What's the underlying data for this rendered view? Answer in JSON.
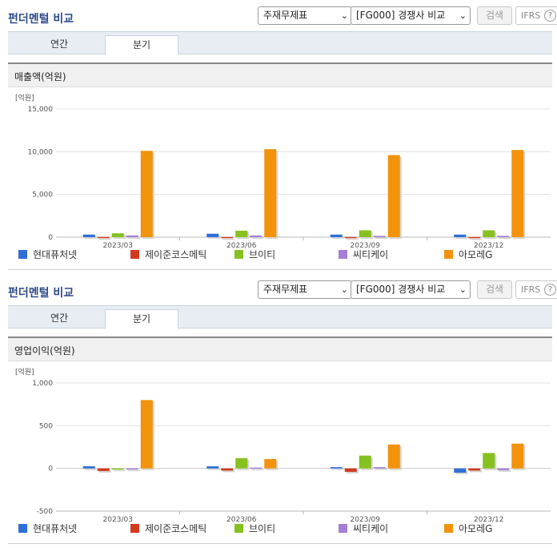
{
  "panels": [
    {
      "title": "펀더멘털 비교",
      "statement_select": "주재무제표",
      "compare_select": "[FG000] 경쟁사 비교",
      "search_button": "검색",
      "ifrs_button": "IFRS",
      "help_icon": "?",
      "tabs": [
        "연간",
        "분기"
      ],
      "active_tab": "분기",
      "metric_title": "매출액(억원)"
    },
    {
      "title": "펀더멘털 비교",
      "statement_select": "주재무제표",
      "compare_select": "[FG000] 경쟁사 비교",
      "search_button": "검색",
      "ifrs_button": "IFRS",
      "help_icon": "?",
      "tabs": [
        "연간",
        "분기"
      ],
      "active_tab": "분기",
      "metric_title": "영업이익(억원)"
    }
  ],
  "colors": {
    "현대퓨처넷": "#2f6fd6",
    "제이준코스메틱": "#d23a1e",
    "브이티": "#86c11f",
    "씨티케이": "#a47fd6",
    "아모레G": "#f2930b"
  },
  "chart_data": [
    {
      "type": "bar",
      "unit_label": "[억원]",
      "categories": [
        "2023/03",
        "2023/06",
        "2023/09",
        "2023/12"
      ],
      "ylim": [
        0,
        15000
      ],
      "yticks": [
        0,
        5000,
        10000,
        15000
      ],
      "ytick_labels": [
        "0",
        "5,000",
        "10,000",
        "15,000"
      ],
      "legend": "bottom",
      "grid": true,
      "series": [
        {
          "name": "현대퓨처넷",
          "values": [
            300,
            400,
            300,
            300
          ]
        },
        {
          "name": "제이준코스메틱",
          "values": [
            20,
            20,
            20,
            20
          ]
        },
        {
          "name": "브이티",
          "values": [
            450,
            750,
            800,
            800
          ]
        },
        {
          "name": "씨티케이",
          "values": [
            200,
            200,
            150,
            150
          ]
        },
        {
          "name": "아모레G",
          "values": [
            10100,
            10300,
            9600,
            10200
          ]
        }
      ]
    },
    {
      "type": "bar",
      "unit_label": "[억원]",
      "categories": [
        "2023/03",
        "2023/06",
        "2023/09",
        "2023/12"
      ],
      "ylim": [
        -500,
        1000
      ],
      "yticks": [
        -500,
        0,
        500,
        1000
      ],
      "ytick_labels": [
        "-500",
        "0",
        "500",
        "1,000"
      ],
      "legend": "bottom",
      "grid": true,
      "series": [
        {
          "name": "현대퓨처넷",
          "values": [
            25,
            25,
            15,
            -50
          ]
        },
        {
          "name": "제이준코스메틱",
          "values": [
            -30,
            -25,
            -40,
            -25
          ]
        },
        {
          "name": "브이티",
          "values": [
            -10,
            120,
            150,
            180
          ]
        },
        {
          "name": "씨티케이",
          "values": [
            -10,
            10,
            15,
            -20
          ]
        },
        {
          "name": "아모레G",
          "values": [
            800,
            110,
            280,
            290
          ]
        }
      ]
    }
  ]
}
